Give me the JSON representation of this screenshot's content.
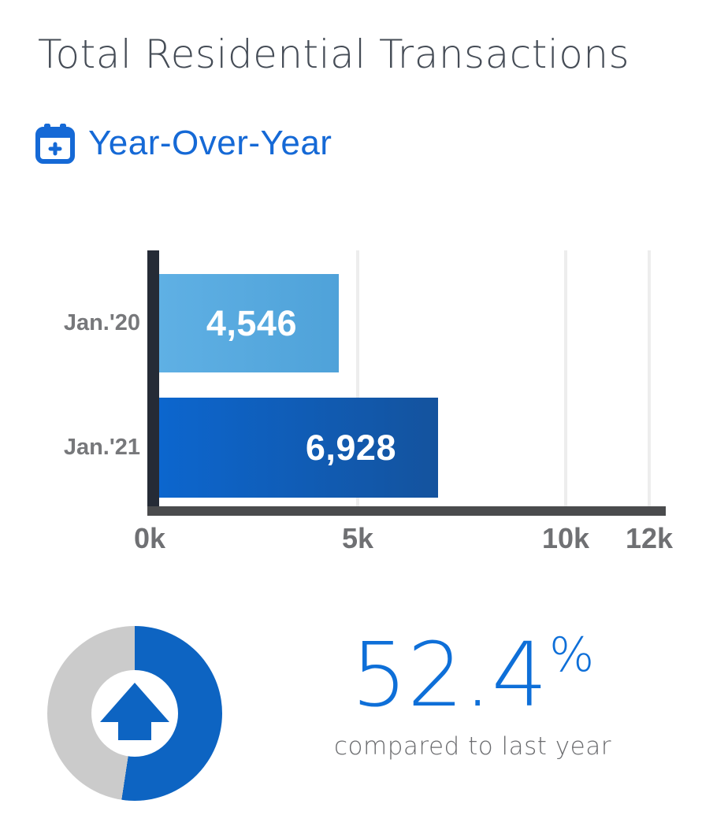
{
  "title": "Total Residential Transactions",
  "section": {
    "label": "Year-Over-Year",
    "icon": "calendar-plus-icon"
  },
  "colors": {
    "accent_blue": "#1569d6",
    "stat_blue": "#0e6fd8",
    "bar_2020_start": "#5FB0E4",
    "bar_2020_end": "#4FA2D9",
    "bar_2021_start": "#0C66CE",
    "bar_2021_end": "#14539E",
    "donut_blue": "#0d64c2",
    "donut_gray": "#cbcbcb",
    "y_axis_dark": "#252b36",
    "x_axis_bar": "#4a4b4d",
    "gridline": "#ededed",
    "label_gray": "#77787b",
    "title_gray": "#454c56"
  },
  "chart_data": {
    "type": "bar",
    "orientation": "horizontal",
    "title": "Total Residential Transactions — Year-Over-Year",
    "categories": [
      "Jan.'20",
      "Jan.'21"
    ],
    "values": [
      4546,
      6928
    ],
    "value_labels": [
      "4,546",
      "6,928"
    ],
    "xlim": [
      0,
      12400
    ],
    "ticks": [
      {
        "value": 0,
        "label": "0k"
      },
      {
        "value": 5000,
        "label": "5k"
      },
      {
        "value": 10000,
        "label": "10k"
      },
      {
        "value": 12000,
        "label": "12k"
      }
    ],
    "grid": true,
    "legend": "none"
  },
  "summary": {
    "percent_value": "52.4",
    "percent_sign": "%",
    "caption": "compared to last year",
    "donut_percent": 52.4,
    "direction": "up"
  }
}
